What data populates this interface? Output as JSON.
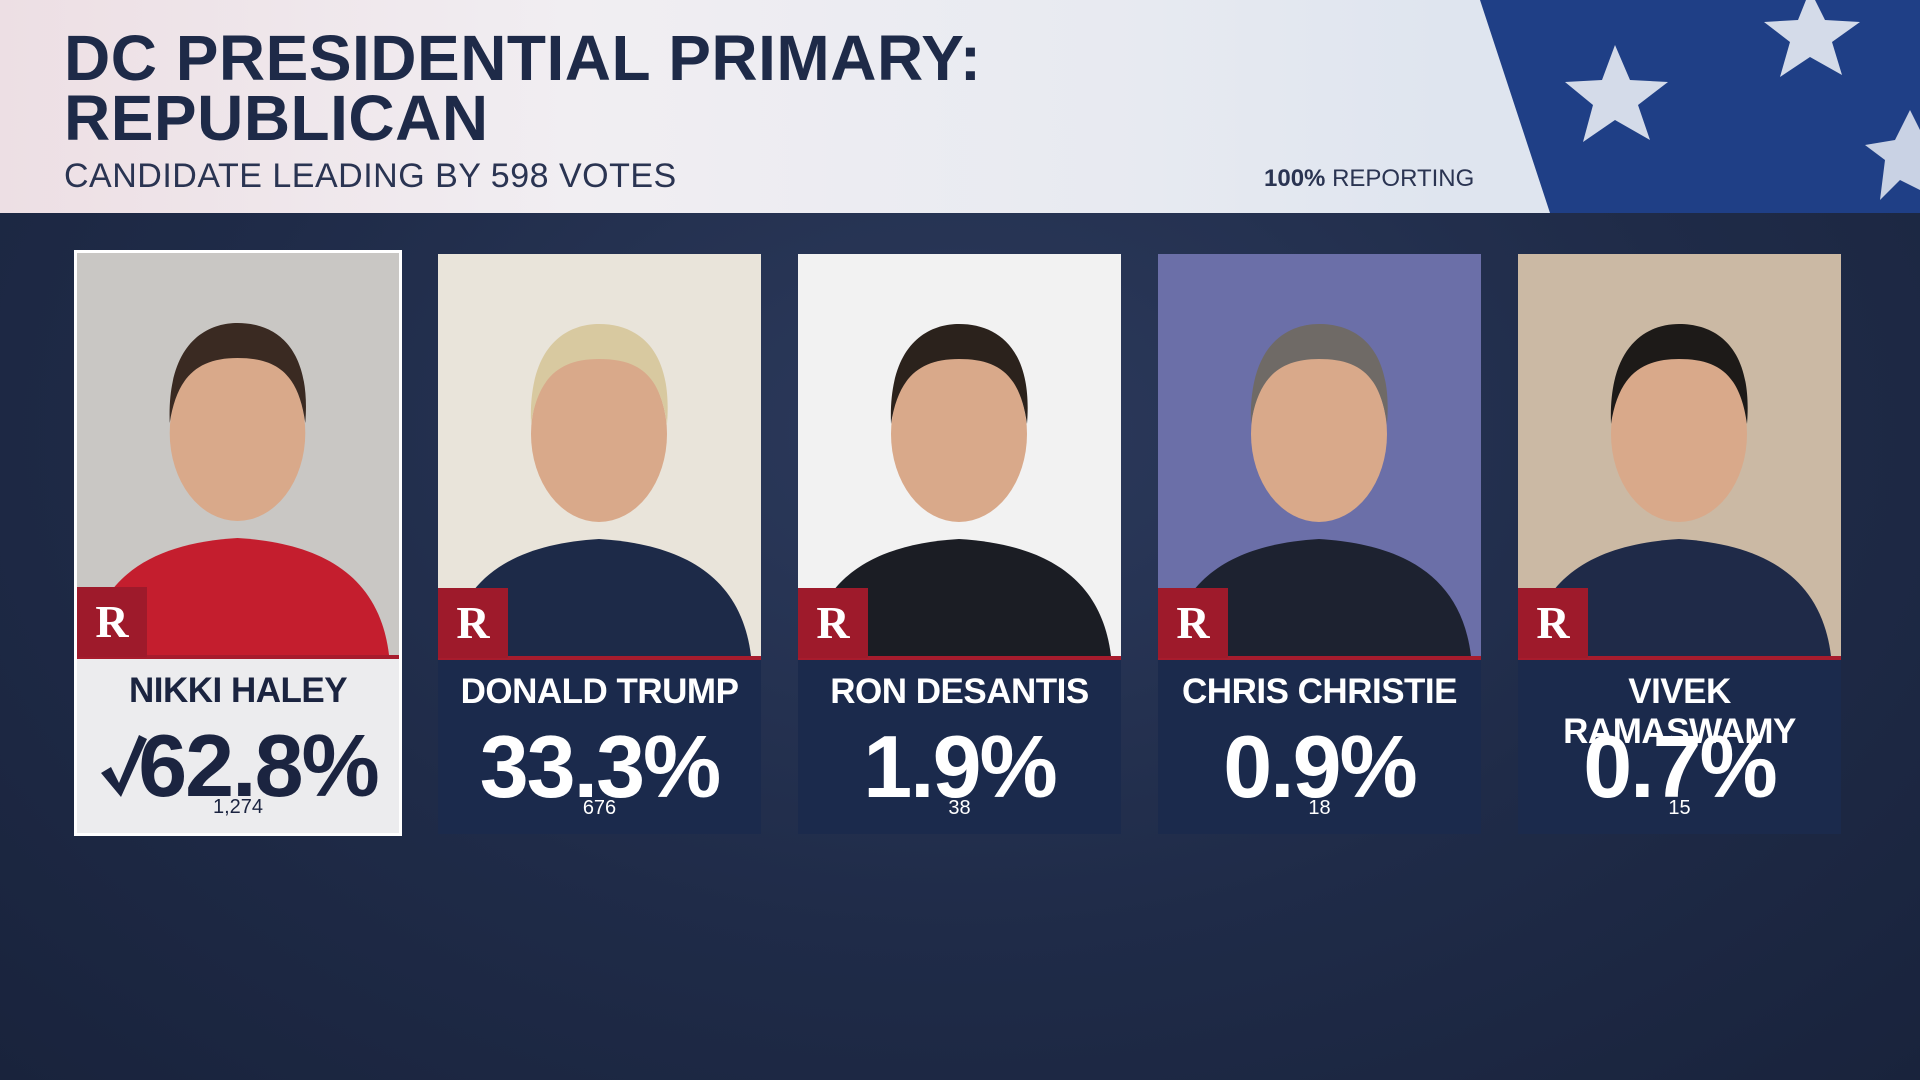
{
  "header": {
    "title": "DC PRESIDENTIAL PRIMARY: REPUBLICAN",
    "subtitle": "CANDIDATE LEADING BY 598 VOTES",
    "reporting": {
      "percent": "100%",
      "label": "REPORTING"
    }
  },
  "candidates": [
    {
      "name": "NIKKI HALEY",
      "party": "R",
      "percent": "62.8%",
      "votes": "1,274",
      "winner": true
    },
    {
      "name": "DONALD TRUMP",
      "party": "R",
      "percent": "33.3%",
      "votes": "676",
      "winner": false
    },
    {
      "name": "RON DESANTIS",
      "party": "R",
      "percent": "1.9%",
      "votes": "38",
      "winner": false
    },
    {
      "name": "CHRIS CHRISTIE",
      "party": "R",
      "percent": "0.9%",
      "votes": "18",
      "winner": false
    },
    {
      "name": "VIVEK RAMASWAMY",
      "party": "R",
      "percent": "0.7%",
      "votes": "15",
      "winner": false
    }
  ]
}
